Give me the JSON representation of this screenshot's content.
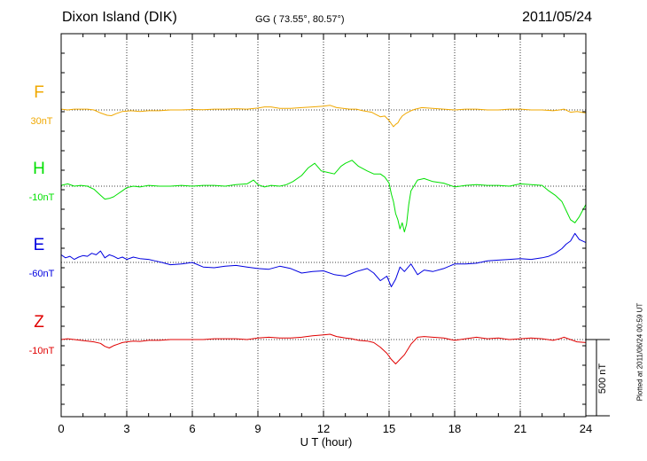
{
  "header": {
    "station": "Dixon Island (DIK)",
    "coords": "GG ( 73.55°,  80.57°)",
    "date": "2011/05/24"
  },
  "scale_label": "500 nT",
  "plotted": "Plotted at 2011/06/24 00:59 UT",
  "chart_data": {
    "type": "line",
    "xlabel": "U T (hour)",
    "xlim": [
      0,
      24
    ],
    "xticks": [
      0,
      3,
      6,
      9,
      12,
      15,
      18,
      21,
      24
    ],
    "grid": "dotted",
    "scale_bar_nT": 500,
    "series": [
      {
        "name": "F",
        "baseline": "30nT",
        "color": "#f0a800",
        "x": [
          0,
          0.3,
          0.6,
          0.9,
          1.2,
          1.5,
          1.8,
          2.1,
          2.3,
          2.5,
          2.8,
          3.2,
          3.6,
          4,
          4.5,
          5,
          5.5,
          6,
          6.5,
          7,
          7.5,
          8,
          8.5,
          9,
          9.3,
          9.6,
          10,
          10.5,
          11,
          11.5,
          12,
          12.3,
          12.6,
          12.9,
          13.2,
          13.5,
          13.8,
          14,
          14.2,
          14.4,
          14.6,
          14.8,
          15,
          15.1,
          15.2,
          15.3,
          15.4,
          15.5,
          15.6,
          15.8,
          16,
          16.2,
          16.5,
          17,
          17.5,
          18,
          18.5,
          19,
          19.5,
          20,
          20.5,
          21,
          21.5,
          22,
          22.5,
          22.8,
          23,
          23.3,
          23.6,
          23.8,
          24
        ],
        "values": [
          5,
          0,
          5,
          5,
          5,
          0,
          -20,
          -35,
          -38,
          -25,
          -10,
          -5,
          -10,
          -5,
          -5,
          0,
          0,
          3,
          2,
          5,
          5,
          8,
          5,
          12,
          20,
          20,
          10,
          10,
          15,
          20,
          25,
          30,
          15,
          10,
          5,
          5,
          -5,
          -10,
          -15,
          -30,
          -45,
          -40,
          -70,
          -90,
          -110,
          -95,
          -85,
          -60,
          -40,
          -20,
          -5,
          5,
          15,
          10,
          5,
          0,
          5,
          5,
          0,
          0,
          5,
          5,
          0,
          0,
          -5,
          0,
          5,
          -15,
          -10,
          -15,
          -20
        ]
      },
      {
        "name": "H",
        "baseline": "-10nT",
        "color": "#00e000",
        "x": [
          0,
          0.3,
          0.6,
          0.9,
          1.2,
          1.5,
          1.8,
          2,
          2.2,
          2.4,
          2.6,
          2.8,
          3,
          3.3,
          3.6,
          4,
          4.5,
          5,
          5.5,
          6,
          6.5,
          7,
          7.5,
          8,
          8.5,
          8.8,
          9,
          9.3,
          9.6,
          10,
          10.3,
          10.6,
          11,
          11.3,
          11.6,
          11.9,
          12.2,
          12.5,
          12.8,
          13,
          13.3,
          13.6,
          14,
          14.3,
          14.6,
          14.8,
          15,
          15.1,
          15.2,
          15.3,
          15.4,
          15.5,
          15.6,
          15.7,
          15.8,
          15.9,
          16,
          16.3,
          16.6,
          17,
          17.5,
          18,
          18.5,
          19,
          19.5,
          20,
          20.5,
          21,
          21.5,
          22,
          22.3,
          22.6,
          22.9,
          23.1,
          23.3,
          23.5,
          23.7,
          24
        ],
        "values": [
          5,
          15,
          0,
          5,
          0,
          -20,
          -60,
          -85,
          -80,
          -70,
          -50,
          -30,
          -10,
          0,
          -5,
          5,
          0,
          0,
          5,
          0,
          5,
          5,
          0,
          10,
          15,
          40,
          10,
          -5,
          5,
          0,
          10,
          30,
          70,
          120,
          150,
          100,
          90,
          80,
          130,
          150,
          170,
          130,
          100,
          80,
          80,
          60,
          20,
          -50,
          -100,
          -180,
          -220,
          -280,
          -240,
          -300,
          -250,
          -120,
          -30,
          40,
          50,
          30,
          20,
          -5,
          5,
          10,
          5,
          5,
          0,
          15,
          10,
          5,
          -30,
          -60,
          -100,
          -160,
          -220,
          -240,
          -200,
          -120
        ]
      },
      {
        "name": "E",
        "baseline": "-60nT",
        "color": "#0000e0",
        "x": [
          0,
          0.2,
          0.4,
          0.6,
          0.8,
          1,
          1.2,
          1.4,
          1.6,
          1.8,
          2,
          2.2,
          2.4,
          2.6,
          2.8,
          3,
          3.3,
          3.6,
          4,
          4.3,
          4.6,
          5,
          5.5,
          6,
          6.5,
          7,
          7.5,
          8,
          8.5,
          9,
          9.5,
          10,
          10.5,
          11,
          11.5,
          12,
          12.5,
          13,
          13.5,
          14,
          14.3,
          14.6,
          14.9,
          15.1,
          15.3,
          15.5,
          15.7,
          16,
          16.3,
          16.6,
          17,
          17.5,
          18,
          18.5,
          19,
          19.5,
          20,
          20.5,
          21,
          21.5,
          22,
          22.3,
          22.6,
          22.9,
          23.1,
          23.3,
          23.5,
          23.7,
          24
        ],
        "values": [
          50,
          30,
          40,
          20,
          35,
          45,
          40,
          60,
          50,
          75,
          30,
          50,
          40,
          25,
          35,
          20,
          35,
          25,
          20,
          10,
          0,
          -15,
          -10,
          0,
          -30,
          -35,
          -25,
          -20,
          -30,
          -40,
          -45,
          -25,
          -40,
          -70,
          -60,
          -55,
          -80,
          -90,
          -60,
          -40,
          -70,
          -120,
          -90,
          -160,
          -110,
          -30,
          -60,
          -10,
          -80,
          -50,
          -60,
          -40,
          -10,
          -10,
          -5,
          10,
          15,
          20,
          25,
          20,
          30,
          40,
          60,
          90,
          120,
          140,
          190,
          150,
          130
        ]
      },
      {
        "name": "Z",
        "baseline": "-10nT",
        "color": "#e00000",
        "x": [
          0,
          0.3,
          0.6,
          0.9,
          1.2,
          1.5,
          1.8,
          2,
          2.2,
          2.4,
          2.6,
          2.8,
          3,
          3.3,
          3.6,
          4,
          4.5,
          5,
          5.5,
          6,
          6.5,
          7,
          7.5,
          8,
          8.5,
          9,
          9.5,
          10,
          10.5,
          11,
          11.5,
          12,
          12.3,
          12.6,
          13,
          13.3,
          13.6,
          14,
          14.3,
          14.6,
          14.9,
          15.1,
          15.3,
          15.5,
          15.7,
          16,
          16.3,
          16.6,
          17,
          17.5,
          18,
          18.5,
          19,
          19.5,
          20,
          20.5,
          21,
          21.5,
          22,
          22.5,
          22.8,
          23,
          23.3,
          23.6,
          24
        ],
        "values": [
          0,
          5,
          0,
          -5,
          -10,
          -15,
          -25,
          -45,
          -55,
          -40,
          -30,
          -20,
          -15,
          -10,
          -12,
          -5,
          -5,
          0,
          0,
          0,
          0,
          5,
          5,
          5,
          0,
          10,
          15,
          10,
          10,
          15,
          25,
          30,
          35,
          20,
          10,
          5,
          -5,
          -10,
          -20,
          -50,
          -90,
          -130,
          -160,
          -130,
          -100,
          -30,
          15,
          20,
          15,
          10,
          -5,
          5,
          15,
          5,
          10,
          0,
          5,
          10,
          5,
          -5,
          5,
          15,
          0,
          -15,
          -20
        ]
      }
    ]
  }
}
